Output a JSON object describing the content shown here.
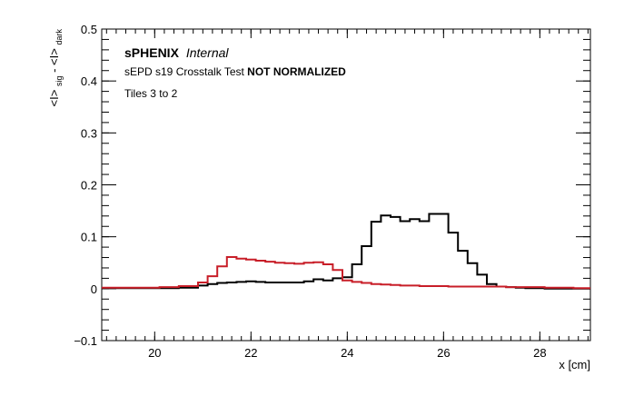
{
  "chart_data": {
    "type": "line",
    "style": "step-histogram",
    "xlabel": "x [cm]",
    "ylabel": {
      "base": "<I>",
      "base_sub": "sig",
      "minus": " - ",
      "sub_term": "<I>",
      "sub_term_sub": "dark"
    },
    "xlim": [
      18.9,
      29.05
    ],
    "ylim": [
      -0.1,
      0.5
    ],
    "x_ticks": [
      "20",
      "22",
      "24",
      "26",
      "28"
    ],
    "y_ticks": [
      "−0.1",
      "0",
      "0.1",
      "0.2",
      "0.3",
      "0.4",
      "0.5"
    ],
    "grid": false,
    "annotations": {
      "title_bold": "sPHENIX",
      "title_italic": "Internal",
      "line2_normal": "sEPD s19 Crosstalk Test ",
      "line2_bold": "NOT NORMALIZED",
      "line3": "Tiles 3 to 2"
    },
    "bin_edges": [
      18.9,
      19.3,
      19.7,
      20.1,
      20.5,
      20.9,
      21.1,
      21.3,
      21.5,
      21.7,
      21.9,
      22.1,
      22.3,
      22.5,
      22.7,
      22.9,
      23.1,
      23.3,
      23.5,
      23.7,
      23.9,
      24.1,
      24.3,
      24.5,
      24.7,
      24.9,
      25.1,
      25.3,
      25.5,
      25.7,
      25.9,
      26.1,
      26.3,
      26.5,
      26.7,
      26.9,
      27.1,
      27.3,
      27.5,
      27.7,
      27.9,
      28.1,
      28.3,
      28.5,
      28.7,
      29.05
    ],
    "series": [
      {
        "color": "#000000",
        "values": [
          0.001,
          0.001,
          0.001,
          0.001,
          0.002,
          0.006,
          0.009,
          0.011,
          0.012,
          0.013,
          0.014,
          0.013,
          0.012,
          0.012,
          0.012,
          0.012,
          0.014,
          0.018,
          0.016,
          0.02,
          0.022,
          0.047,
          0.082,
          0.129,
          0.141,
          0.138,
          0.13,
          0.134,
          0.13,
          0.144,
          0.144,
          0.108,
          0.073,
          0.049,
          0.027,
          0.009,
          0.004,
          0.003,
          0.002,
          0.001,
          0.001,
          0.0,
          0.0,
          0.0,
          0.0
        ]
      },
      {
        "color": "#c81e28",
        "values": [
          0.002,
          0.002,
          0.002,
          0.003,
          0.005,
          0.012,
          0.024,
          0.043,
          0.061,
          0.058,
          0.056,
          0.054,
          0.052,
          0.05,
          0.049,
          0.048,
          0.05,
          0.051,
          0.047,
          0.036,
          0.016,
          0.013,
          0.011,
          0.009,
          0.008,
          0.007,
          0.006,
          0.006,
          0.005,
          0.005,
          0.005,
          0.004,
          0.004,
          0.004,
          0.004,
          0.004,
          0.004,
          0.003,
          0.003,
          0.003,
          0.003,
          0.002,
          0.002,
          0.002,
          0.001
        ]
      }
    ]
  }
}
